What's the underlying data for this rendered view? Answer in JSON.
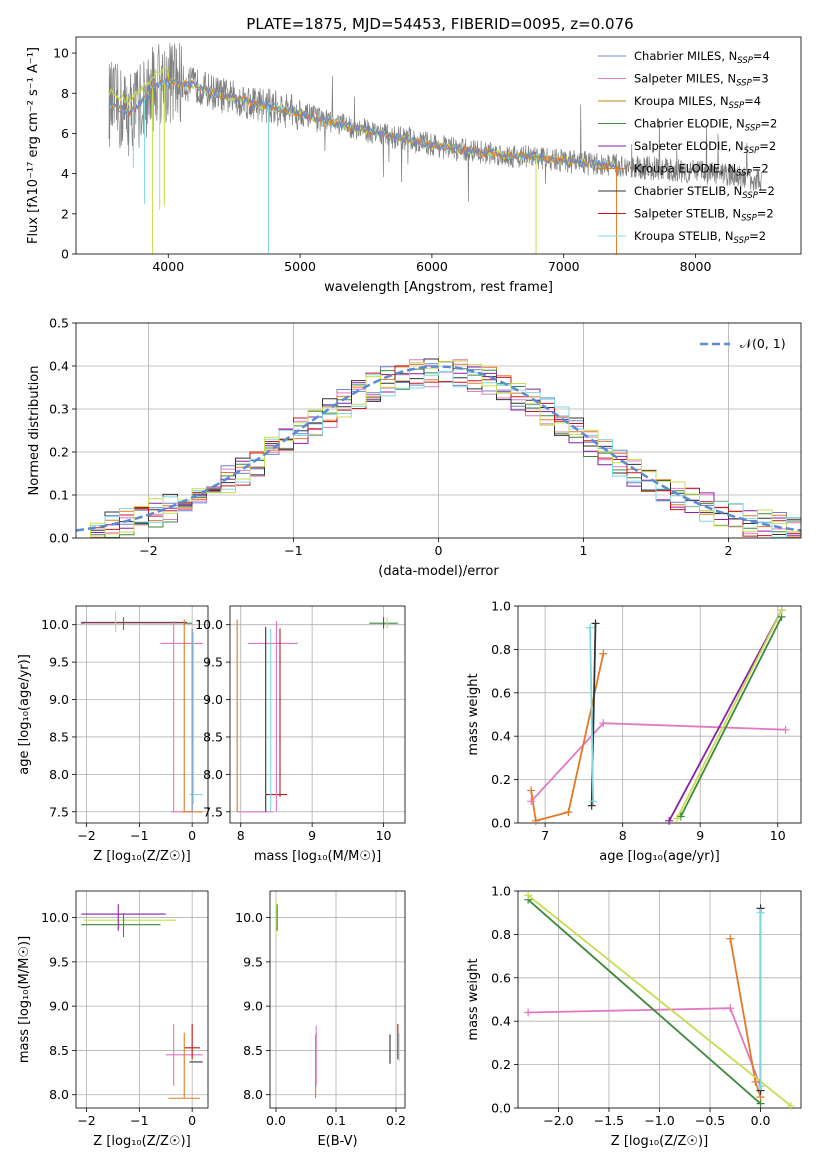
{
  "figure": {
    "title": "PLATE=1875, MJD=54453, FIBERID=0095, z=0.076"
  },
  "colors": {
    "chabrier_miles": "#6f86c8",
    "salpeter_miles": "#e377c2",
    "kroupa_miles": "#b8860b",
    "chabrier_elodie": "#3c8a3c",
    "salpeter_elodie": "#8b1fa8",
    "kroupa_elodie": "#e07a2a",
    "chabrier_stelib": "#333333",
    "salpeter_stelib": "#c0181c",
    "kroupa_stelib": "#7fd8e0",
    "data_gray": "#808080",
    "yellowgreen": "#c8dc50",
    "dash_blue": "#5a8ad6"
  },
  "legend_models": [
    {
      "label": "Chabrier MILES, N",
      "sub": "SSP",
      "suffix": "=4",
      "color": "#6f86c8"
    },
    {
      "label": "Salpeter MILES, N",
      "sub": "SSP",
      "suffix": "=3",
      "color": "#e377c2"
    },
    {
      "label": "Kroupa MILES, N",
      "sub": "SSP",
      "suffix": "=4",
      "color": "#b8860b"
    },
    {
      "label": "Chabrier ELODIE, N",
      "sub": "SSP",
      "suffix": "=2",
      "color": "#3c8a3c"
    },
    {
      "label": "Salpeter ELODIE, N",
      "sub": "SSP",
      "suffix": "=2",
      "color": "#8b1fa8"
    },
    {
      "label": "Kroupa ELODIE, N",
      "sub": "SSP",
      "suffix": "=2",
      "color": "#e07a2a"
    },
    {
      "label": "Chabrier STELIB, N",
      "sub": "SSP",
      "suffix": "=2",
      "color": "#333333"
    },
    {
      "label": "Salpeter STELIB, N",
      "sub": "SSP",
      "suffix": "=2",
      "color": "#c0181c"
    },
    {
      "label": "Kroupa STELIB, N",
      "sub": "SSP",
      "suffix": "=2",
      "color": "#7fd8e0"
    }
  ],
  "chart_data": [
    {
      "id": "spectrum",
      "type": "line",
      "xlabel": "wavelength [Angstrom, rest frame]",
      "ylabel": "Flux [fλ10⁻¹⁷ erg cm⁻² s⁻¹ A⁻¹]",
      "xlim": [
        3300,
        8800
      ],
      "ylim": [
        0,
        10.8
      ],
      "xticks": [
        4000,
        5000,
        6000,
        7000,
        8000
      ],
      "yticks": [
        0,
        2,
        4,
        6,
        8,
        10
      ],
      "grid": false,
      "legend": "top-right",
      "continuum": {
        "x": [
          3550,
          3700,
          3800,
          3900,
          4000,
          4200,
          4400,
          4600,
          4800,
          5000,
          5200,
          5400,
          5600,
          5800,
          6000,
          6200,
          6400,
          6600,
          6800,
          7000,
          7200,
          7400,
          7600,
          7800,
          8000,
          8200,
          8400,
          8500
        ],
        "y": [
          7.5,
          7.0,
          7.6,
          8.4,
          8.6,
          8.4,
          7.9,
          7.6,
          7.3,
          7.0,
          6.6,
          6.3,
          6.0,
          5.7,
          5.45,
          5.2,
          5.05,
          4.9,
          4.8,
          4.65,
          4.5,
          4.4,
          4.3,
          4.2,
          4.1,
          3.95,
          3.8,
          3.6
        ]
      },
      "model_dips": [
        {
          "x": 3935,
          "y": 2.2,
          "color": "yellowgreen"
        },
        {
          "x": 3970,
          "y": 2.4,
          "color": "yellowgreen"
        },
        {
          "x": 3880,
          "y": 0.0,
          "color": "yellowgreen"
        },
        {
          "x": 3735,
          "y": 4.3,
          "color": "kroupa_stelib"
        },
        {
          "x": 3820,
          "y": 2.5,
          "color": "kroupa_stelib"
        },
        {
          "x": 4760,
          "y": 0.0,
          "color": "kroupa_stelib"
        },
        {
          "x": 6790,
          "y": 0.0,
          "color": "yellowgreen"
        },
        {
          "x": 7400,
          "y": 0.0,
          "color": "kroupa_elodie"
        }
      ]
    },
    {
      "id": "residuals",
      "type": "histogram",
      "xlabel": "(data-model)/error",
      "ylabel": "Normed distribution",
      "xlim": [
        -2.5,
        2.5
      ],
      "ylim": [
        0,
        0.5
      ],
      "xticks": [
        -2,
        -1,
        0,
        1,
        2
      ],
      "yticks": [
        0.0,
        0.1,
        0.2,
        0.3,
        0.4,
        0.5
      ],
      "grid": true,
      "legend": "top-right",
      "gaussian_label": "𝒩(0, 1)",
      "bin_width": 0.1,
      "bin_start": -2.5
    },
    {
      "id": "age_vs_Z",
      "type": "scatter",
      "xlabel": "Z [log₁₀(Z/Z☉)]",
      "ylabel": "age  [log₁₀(age/yr)]",
      "xlim": [
        -2.2,
        0.3
      ],
      "ylim": [
        7.35,
        10.25
      ],
      "xticks": [
        -2,
        -1,
        0
      ],
      "yticks": [
        7.5,
        8.0,
        8.5,
        9.0,
        9.5,
        10.0
      ],
      "grid": true,
      "hbars": [
        {
          "y": 10.02,
          "x0": -2.1,
          "x1": 0.0,
          "color": "chabrier_elodie"
        },
        {
          "y": 10.02,
          "x0": -2.05,
          "x1": -0.15,
          "color": "yellowgreen"
        },
        {
          "y": 10.03,
          "x0": -2.1,
          "x1": -0.1,
          "color": "salpeter_elodie"
        },
        {
          "y": 9.75,
          "x0": -0.6,
          "x1": 0.2,
          "color": "salpeter_miles"
        },
        {
          "y": 7.5,
          "x0": -0.4,
          "x1": 0.0,
          "color": "salpeter_miles"
        },
        {
          "y": 7.5,
          "x0": -0.2,
          "x1": 0.2,
          "color": "kroupa_elodie"
        },
        {
          "y": 7.73,
          "x0": -0.05,
          "x1": 0.2,
          "color": "kroupa_stelib"
        }
      ],
      "vbars": [
        {
          "x": -0.15,
          "y0": 7.5,
          "y1": 10.07,
          "color": "kroupa_elodie"
        },
        {
          "x": -0.35,
          "y0": 7.5,
          "y1": 10.05,
          "color": "salpeter_miles"
        },
        {
          "x": 0.0,
          "y0": 7.5,
          "y1": 9.95,
          "color": "chabrier_miles"
        },
        {
          "x": 0.02,
          "y0": 7.6,
          "y1": 9.9,
          "color": "kroupa_stelib"
        },
        {
          "x": -1.45,
          "y0": 9.9,
          "y1": 10.18,
          "color": "yellowgreen"
        },
        {
          "x": -1.3,
          "y0": 9.93,
          "y1": 10.1,
          "color": "chabrier_elodie"
        }
      ]
    },
    {
      "id": "age_vs_mass",
      "type": "scatter",
      "xlabel": "mass [log₁₀(M/M☉)]",
      "ylabel": "",
      "xlim": [
        7.85,
        10.3
      ],
      "ylim": [
        7.35,
        10.25
      ],
      "xticks": [
        8,
        9,
        10
      ],
      "yticks": [
        7.5,
        8.0,
        8.5,
        9.0,
        9.5,
        10.0
      ],
      "grid": true,
      "hbars": [
        {
          "y": 10.02,
          "x0": 9.8,
          "x1": 10.2,
          "color": "chabrier_elodie"
        },
        {
          "y": 9.75,
          "x0": 8.1,
          "x1": 8.8,
          "color": "salpeter_miles"
        },
        {
          "y": 7.73,
          "x0": 8.35,
          "x1": 8.65,
          "color": "salpeter_stelib"
        },
        {
          "y": 7.5,
          "x0": 7.95,
          "x1": 8.45,
          "color": "salpeter_miles"
        }
      ],
      "vbars": [
        {
          "x": 7.95,
          "y0": 7.5,
          "y1": 10.07,
          "color": "kroupa_elodie"
        },
        {
          "x": 8.35,
          "y0": 7.5,
          "y1": 9.97,
          "color": "chabrier_stelib"
        },
        {
          "x": 8.42,
          "y0": 7.5,
          "y1": 9.95,
          "color": "kroupa_stelib"
        },
        {
          "x": 8.5,
          "y0": 7.5,
          "y1": 10.05,
          "color": "salpeter_miles"
        },
        {
          "x": 8.55,
          "y0": 7.7,
          "y1": 9.95,
          "color": "salpeter_stelib"
        },
        {
          "x": 10.0,
          "y0": 9.95,
          "y1": 10.1,
          "color": "salpeter_elodie"
        },
        {
          "x": 10.05,
          "y0": 9.95,
          "y1": 10.1,
          "color": "yellowgreen"
        }
      ]
    },
    {
      "id": "weight_vs_age",
      "type": "line",
      "xlabel": "age  [log₁₀(age/yr)]",
      "ylabel": "mass weight",
      "xlim": [
        6.65,
        10.3
      ],
      "ylim": [
        0,
        1.0
      ],
      "xticks": [
        7,
        8,
        9,
        10
      ],
      "yticks": [
        0.0,
        0.2,
        0.4,
        0.6,
        0.8,
        1.0
      ],
      "grid": true,
      "series": [
        {
          "color": "salpeter_miles",
          "x": [
            6.82,
            7.75,
            10.1
          ],
          "y": [
            0.1,
            0.46,
            0.43
          ]
        },
        {
          "color": "kroupa_elodie",
          "x": [
            6.82,
            6.88,
            7.3,
            7.75
          ],
          "y": [
            0.15,
            0.01,
            0.05,
            0.78
          ]
        },
        {
          "color": "salpeter_elodie",
          "x": [
            8.6,
            10.05
          ],
          "y": [
            0.01,
            0.98
          ]
        },
        {
          "color": "chabrier_elodie",
          "x": [
            8.75,
            10.05
          ],
          "y": [
            0.03,
            0.95
          ]
        },
        {
          "color": "yellowgreen",
          "x": [
            8.7,
            10.05
          ],
          "y": [
            0.02,
            0.98
          ]
        },
        {
          "color": "chabrier_stelib",
          "x": [
            7.6,
            7.65
          ],
          "y": [
            0.08,
            0.92
          ]
        },
        {
          "color": "kroupa_stelib",
          "x": [
            7.58,
            7.62
          ],
          "y": [
            0.9,
            0.1
          ]
        }
      ]
    },
    {
      "id": "mass_vs_Z",
      "type": "scatter",
      "xlabel": "Z [log₁₀(Z/Z☉)]",
      "ylabel": "mass [log₁₀(M/M☉)]",
      "xlim": [
        -2.2,
        0.3
      ],
      "ylim": [
        7.85,
        10.3
      ],
      "xticks": [
        -2,
        -1,
        0
      ],
      "yticks": [
        8.0,
        8.5,
        9.0,
        9.5,
        10.0
      ],
      "grid": true,
      "hbars": [
        {
          "y": 10.04,
          "x0": -2.1,
          "x1": -0.5,
          "color": "salpeter_elodie"
        },
        {
          "y": 9.97,
          "x0": -2.05,
          "x1": -0.3,
          "color": "yellowgreen"
        },
        {
          "y": 9.92,
          "x0": -2.1,
          "x1": -0.6,
          "color": "chabrier_elodie"
        },
        {
          "y": 8.53,
          "x0": -0.15,
          "x1": 0.15,
          "color": "salpeter_stelib"
        },
        {
          "y": 8.45,
          "x0": -0.5,
          "x1": 0.2,
          "color": "salpeter_miles"
        },
        {
          "y": 8.37,
          "x0": -0.05,
          "x1": 0.2,
          "color": "chabrier_stelib"
        },
        {
          "y": 7.96,
          "x0": -0.45,
          "x1": 0.15,
          "color": "kroupa_elodie"
        }
      ],
      "vbars": [
        {
          "x": -1.4,
          "y0": 9.85,
          "y1": 10.15,
          "color": "salpeter_elodie"
        },
        {
          "x": -1.3,
          "y0": 9.78,
          "y1": 10.05,
          "color": "chabrier_elodie"
        },
        {
          "x": -0.35,
          "y0": 8.1,
          "y1": 8.8,
          "color": "salpeter_miles"
        },
        {
          "x": -0.15,
          "y0": 7.96,
          "y1": 8.7,
          "color": "kroupa_elodie"
        },
        {
          "x": 0.0,
          "y0": 8.4,
          "y1": 8.8,
          "color": "salpeter_stelib"
        }
      ]
    },
    {
      "id": "mass_vs_ebv",
      "type": "scatter",
      "xlabel": "E(B-V)",
      "ylabel": "",
      "xlim": [
        -0.01,
        0.215
      ],
      "ylim": [
        7.85,
        10.3
      ],
      "xticks": [
        0.0,
        0.1,
        0.2
      ],
      "yticks": [
        8.0,
        8.5,
        9.0,
        9.5,
        10.0
      ],
      "grid": true,
      "vbars": [
        {
          "x": 0.0,
          "y0": 9.8,
          "y1": 10.22,
          "color": "yellowgreen"
        },
        {
          "x": 0.002,
          "y0": 9.85,
          "y1": 10.15,
          "color": "chabrier_elodie"
        },
        {
          "x": 0.067,
          "y0": 8.1,
          "y1": 8.78,
          "color": "salpeter_miles"
        },
        {
          "x": 0.066,
          "y0": 7.96,
          "y1": 8.68,
          "color": "kroupa_elodie"
        },
        {
          "x": 0.19,
          "y0": 8.35,
          "y1": 8.68,
          "color": "chabrier_stelib"
        },
        {
          "x": 0.203,
          "y0": 8.4,
          "y1": 8.8,
          "color": "salpeter_stelib"
        },
        {
          "x": 0.205,
          "y0": 8.38,
          "y1": 8.7,
          "color": "kroupa_stelib"
        }
      ]
    },
    {
      "id": "weight_vs_Z",
      "type": "line",
      "xlabel": "Z [log₁₀(Z/Z☉)]",
      "ylabel": "mass weight",
      "xlim": [
        -2.4,
        0.4
      ],
      "ylim": [
        0,
        1.0
      ],
      "xticks": [
        -2.0,
        -1.5,
        -1.0,
        -0.5,
        0.0
      ],
      "yticks": [
        0.0,
        0.2,
        0.4,
        0.6,
        0.8,
        1.0
      ],
      "grid": true,
      "series": [
        {
          "color": "salpeter_miles",
          "x": [
            -2.3,
            -0.3,
            0.0
          ],
          "y": [
            0.44,
            0.46,
            0.1
          ]
        },
        {
          "color": "kroupa_elodie",
          "x": [
            -0.3,
            -0.05,
            0.0
          ],
          "y": [
            0.78,
            0.12,
            0.05
          ]
        },
        {
          "color": "chabrier_elodie",
          "x": [
            -2.3,
            0.0
          ],
          "y": [
            0.96,
            0.02
          ]
        },
        {
          "color": "yellowgreen",
          "x": [
            -2.3,
            0.3
          ],
          "y": [
            0.98,
            0.01
          ]
        },
        {
          "color": "chabrier_stelib",
          "x": [
            0.0,
            0.0
          ],
          "y": [
            0.08,
            0.92
          ]
        },
        {
          "color": "kroupa_stelib",
          "x": [
            0.0,
            0.0
          ],
          "y": [
            0.9,
            0.1
          ]
        }
      ]
    }
  ]
}
